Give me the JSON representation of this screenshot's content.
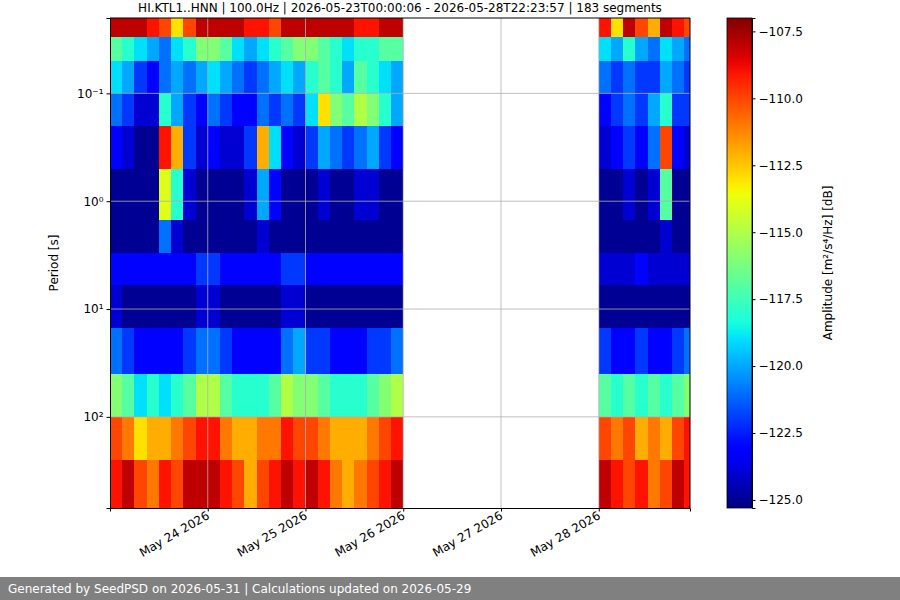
{
  "chart_data": {
    "type": "heatmap",
    "title": "HI.KTL1..HNN | 100.0Hz | 2026-05-23T00:00:06 - 2026-05-28T22:23:57 | 183 segments",
    "footer": "Generated by SeedPSD on 2026-05-31 | Calculations updated on 2026-05-29",
    "y_label": "Period [s]",
    "colorbar_label": "Amplitude [m²/s⁴/Hz] [dB]",
    "color": "jet",
    "log": "y",
    "grid": true,
    "xlim": [
      "2026-05-23T00:00:06",
      "2026-05-28T22:23:57"
    ],
    "xticks": [
      {
        "value": "2026-05-24T00:00",
        "label": "May 24 2026"
      },
      {
        "value": "2026-05-25T00:00",
        "label": "May 25 2026"
      },
      {
        "value": "2026-05-26T00:00",
        "label": "May 26 2026"
      },
      {
        "value": "2026-05-27T00:00",
        "label": "May 27 2026"
      },
      {
        "value": "2026-05-28T00:00",
        "label": "May 28 2026"
      }
    ],
    "ylim": [
      0.02,
      700
    ],
    "yticks": [
      {
        "value": 0.1,
        "label": "10⁻¹"
      },
      {
        "value": 1,
        "label": "10⁰"
      },
      {
        "value": 10,
        "label": "10¹"
      },
      {
        "value": 100,
        "label": "10²"
      }
    ],
    "colorbar_range": [
      -125.3,
      -107.0
    ],
    "colorbar_ticks": [
      {
        "value": -107.5,
        "label": "−107.5"
      },
      {
        "value": -110,
        "label": "−110.0"
      },
      {
        "value": -112.5,
        "label": "−112.5"
      },
      {
        "value": -115,
        "label": "−115.0"
      },
      {
        "value": -117.5,
        "label": "−117.5"
      },
      {
        "value": -120,
        "label": "−120.0"
      },
      {
        "value": -122.5,
        "label": "−122.5"
      },
      {
        "value": -125,
        "label": "−125.0"
      }
    ],
    "x_bins": [
      "2026-05-23T00:00",
      "2026-05-23T03:00",
      "2026-05-23T06:00",
      "2026-05-23T09:00",
      "2026-05-23T12:00",
      "2026-05-23T15:00",
      "2026-05-23T18:00",
      "2026-05-23T21:00",
      "2026-05-24T00:00",
      "2026-05-24T03:00",
      "2026-05-24T06:00",
      "2026-05-24T09:00",
      "2026-05-24T12:00",
      "2026-05-24T15:00",
      "2026-05-24T18:00",
      "2026-05-24T21:00",
      "2026-05-25T00:00",
      "2026-05-25T03:00",
      "2026-05-25T06:00",
      "2026-05-25T09:00",
      "2026-05-25T12:00",
      "2026-05-25T15:00",
      "2026-05-25T18:00",
      "2026-05-25T21:00",
      "2026-05-26T00:00",
      "2026-05-26T03:00",
      "2026-05-26T06:00",
      "2026-05-26T09:00",
      "2026-05-26T12:00",
      "2026-05-26T15:00",
      "2026-05-26T18:00",
      "2026-05-26T21:00",
      "2026-05-27T00:00",
      "2026-05-27T03:00",
      "2026-05-27T06:00",
      "2026-05-27T09:00",
      "2026-05-27T12:00",
      "2026-05-27T15:00",
      "2026-05-27T18:00",
      "2026-05-27T21:00",
      "2026-05-28T00:00",
      "2026-05-28T03:00",
      "2026-05-28T06:00",
      "2026-05-28T09:00",
      "2026-05-28T12:00",
      "2026-05-28T15:00",
      "2026-05-28T18:00",
      "2026-05-28T21:00",
      "2026-05-29T00:00"
    ],
    "y_bins": [
      0.02,
      0.03,
      0.05,
      0.1,
      0.2,
      0.5,
      1.5,
      3,
      6,
      15,
      40,
      100,
      250,
      700
    ],
    "values": [
      [
        -108,
        -108,
        -108,
        -109,
        -110,
        -113,
        -110,
        -108,
        -108,
        -108,
        -108,
        -109,
        -109,
        -110,
        -108,
        -108,
        -108,
        -108,
        -108,
        -108,
        -109,
        -109,
        -108,
        -108,
        null,
        null,
        null,
        null,
        null,
        null,
        null,
        null,
        null,
        null,
        null,
        null,
        null,
        null,
        null,
        null,
        -109,
        -113,
        -108,
        -110,
        -112,
        -108,
        -109,
        -110
      ],
      [
        -117,
        -118,
        -119,
        -120,
        -121,
        -119,
        -118,
        -116,
        -116,
        -117,
        -119,
        -120,
        -119,
        -118,
        -117,
        -116,
        -116,
        -117,
        -118,
        -119,
        -118,
        -118,
        -117,
        -117,
        null,
        null,
        null,
        null,
        null,
        null,
        null,
        null,
        null,
        null,
        null,
        null,
        null,
        null,
        null,
        null,
        -119,
        -120,
        -118,
        -120,
        -121,
        -119,
        -120,
        -121
      ],
      [
        -119,
        -120,
        -122,
        -123,
        -121,
        -120,
        -121,
        -120,
        -119,
        -120,
        -121,
        -122,
        -121,
        -120,
        -119,
        -120,
        -118,
        -117,
        -118,
        -120,
        -117,
        -118,
        -119,
        -120,
        null,
        null,
        null,
        null,
        null,
        null,
        null,
        null,
        null,
        null,
        null,
        null,
        null,
        null,
        null,
        null,
        -121,
        -122,
        -121,
        -122,
        -122,
        -120,
        -121,
        -122
      ],
      [
        -121,
        -122,
        -124,
        -124,
        -118,
        -120,
        -122,
        -123,
        -121,
        -122,
        -123,
        -123,
        -121,
        -122,
        -121,
        -122,
        -119,
        -113,
        -116,
        -117,
        -115,
        -116,
        -118,
        -120,
        null,
        null,
        null,
        null,
        null,
        null,
        null,
        null,
        null,
        null,
        null,
        null,
        null,
        null,
        null,
        null,
        -123,
        -122,
        -121,
        -122,
        -120,
        -118,
        -122,
        -122
      ],
      [
        -123,
        -124,
        -125,
        -125,
        -109,
        -112,
        -122,
        -124,
        -123,
        -124,
        -124,
        -122,
        -112,
        -119,
        -123,
        -124,
        -122,
        -120,
        -121,
        -122,
        -121,
        -120,
        -122,
        -123,
        null,
        null,
        null,
        null,
        null,
        null,
        null,
        null,
        null,
        null,
        null,
        null,
        null,
        null,
        null,
        null,
        -124,
        -123,
        -122,
        -123,
        -121,
        -110,
        -123,
        -124
      ],
      [
        -125,
        -125,
        -125,
        -125,
        -114,
        -118,
        -124,
        -125,
        -125,
        -125,
        -125,
        -124,
        -120,
        -123,
        -125,
        -125,
        -125,
        -124,
        -125,
        -125,
        -124,
        -124,
        -125,
        -125,
        null,
        null,
        null,
        null,
        null,
        null,
        null,
        null,
        null,
        null,
        null,
        null,
        null,
        null,
        null,
        null,
        -125,
        -125,
        -124,
        -125,
        -124,
        -117,
        -125,
        -125
      ],
      [
        -125,
        -125,
        -125,
        -125,
        -121,
        -124,
        -125,
        -125,
        -125,
        -125,
        -125,
        -125,
        -124,
        -125,
        -125,
        -125,
        -125,
        -125,
        -125,
        -125,
        -125,
        -125,
        -125,
        -125,
        null,
        null,
        null,
        null,
        null,
        null,
        null,
        null,
        null,
        null,
        null,
        null,
        null,
        null,
        null,
        null,
        -125,
        -125,
        -125,
        -125,
        -125,
        -124,
        -125,
        -125
      ],
      [
        -123,
        -123,
        -123,
        -123,
        -123,
        -123,
        -123,
        -122,
        -122,
        -123,
        -123,
        -123,
        -123,
        -123,
        -122,
        -122,
        -123,
        -123,
        -123,
        -123,
        -123,
        -123,
        -123,
        -123,
        null,
        null,
        null,
        null,
        null,
        null,
        null,
        null,
        null,
        null,
        null,
        null,
        null,
        null,
        null,
        null,
        -124,
        -124,
        -124,
        -123,
        -124,
        -124,
        -124,
        -124
      ],
      [
        -124,
        -125,
        -125,
        -125,
        -125,
        -125,
        -125,
        -124,
        -124,
        -125,
        -125,
        -125,
        -125,
        -125,
        -124,
        -124,
        -125,
        -125,
        -125,
        -125,
        -125,
        -125,
        -125,
        -125,
        null,
        null,
        null,
        null,
        null,
        null,
        null,
        null,
        null,
        null,
        null,
        null,
        null,
        null,
        null,
        null,
        -125,
        -125,
        -125,
        -125,
        -125,
        -125,
        -125,
        -125
      ],
      [
        -121,
        -122,
        -123,
        -123,
        -123,
        -123,
        -122,
        -121,
        -121,
        -122,
        -123,
        -123,
        -123,
        -123,
        -121,
        -120,
        -122,
        -122,
        -123,
        -123,
        -123,
        -122,
        -122,
        -121,
        null,
        null,
        null,
        null,
        null,
        null,
        null,
        null,
        null,
        null,
        null,
        null,
        null,
        null,
        null,
        null,
        -122,
        -123,
        -123,
        -122,
        -123,
        -123,
        -122,
        -121
      ],
      [
        -116,
        -117,
        -119,
        -118,
        -119,
        -118,
        -117,
        -115,
        -115,
        -117,
        -118,
        -118,
        -118,
        -117,
        -115,
        -116,
        -116,
        -117,
        -118,
        -118,
        -118,
        -117,
        -116,
        -115,
        null,
        null,
        null,
        null,
        null,
        null,
        null,
        null,
        null,
        null,
        null,
        null,
        null,
        null,
        null,
        null,
        -117,
        -118,
        -117,
        -118,
        -117,
        -118,
        -117,
        -116
      ],
      [
        -110,
        -111,
        -113,
        -112,
        -112,
        -111,
        -110,
        -109,
        -109,
        -111,
        -112,
        -112,
        -111,
        -111,
        -109,
        -110,
        -110,
        -111,
        -112,
        -112,
        -112,
        -111,
        -110,
        -109,
        null,
        null,
        null,
        null,
        null,
        null,
        null,
        null,
        null,
        null,
        null,
        null,
        null,
        null,
        null,
        null,
        -110,
        -111,
        -110,
        -112,
        -111,
        -112,
        -110,
        -109
      ],
      [
        -109,
        -108,
        -110,
        -111,
        -109,
        -110,
        -108,
        -108,
        -108,
        -109,
        -110,
        -112,
        -110,
        -109,
        -108,
        -109,
        -108,
        -109,
        -111,
        -112,
        -111,
        -110,
        -109,
        -108,
        null,
        null,
        null,
        null,
        null,
        null,
        null,
        null,
        null,
        null,
        null,
        null,
        null,
        null,
        null,
        null,
        -108,
        -109,
        -110,
        -109,
        -111,
        -110,
        -108,
        -109
      ]
    ]
  }
}
